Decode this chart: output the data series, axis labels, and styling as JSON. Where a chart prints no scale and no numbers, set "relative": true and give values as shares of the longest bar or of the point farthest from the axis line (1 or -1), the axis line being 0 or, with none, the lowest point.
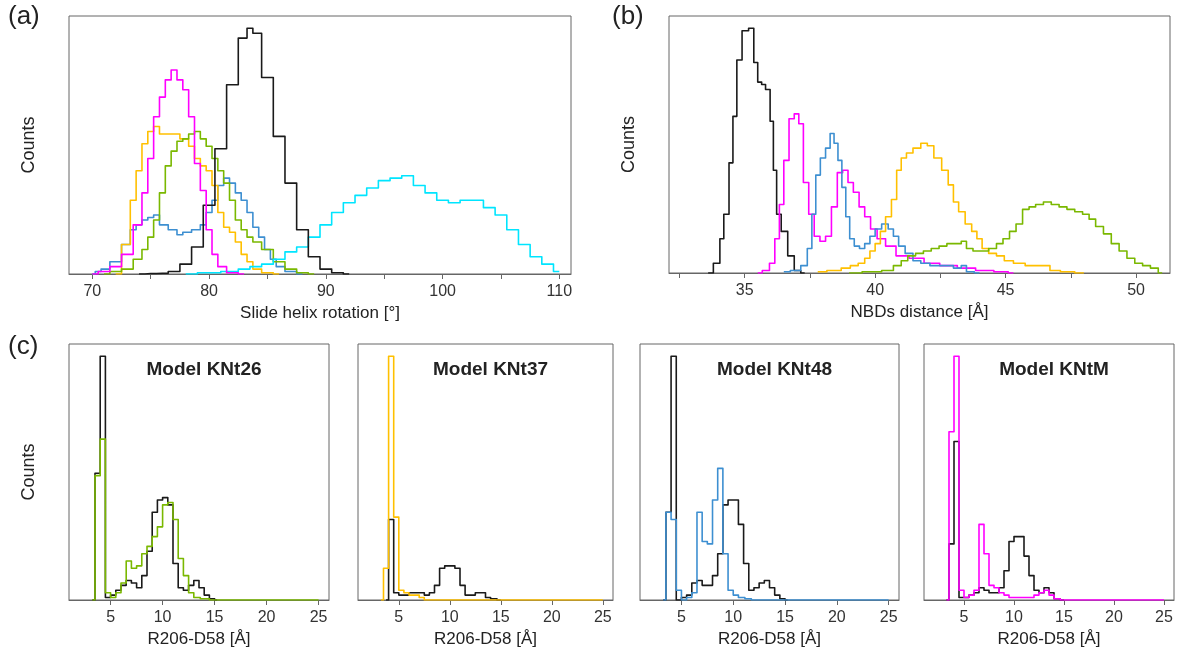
{
  "chart_data": [
    {
      "type": "step",
      "relative": true,
      "annotations": [
        "(a)"
      ],
      "xlabel": "Slide helix rotation [°]",
      "ylabel": "Counts",
      "xlim": [
        68,
        111
      ],
      "xticks": [
        70,
        {
          "value": 75,
          "label": null
        },
        80,
        {
          "value": 85,
          "label": null
        },
        90,
        {
          "value": 95,
          "label": null
        },
        100,
        {
          "value": 105,
          "label": null
        },
        110
      ],
      "series": [
        {
          "color": "#3d8fd1",
          "x": [
            70,
            70.5,
            71,
            72,
            73,
            73.5,
            74,
            74.5,
            75,
            75.5,
            76,
            77,
            77.5,
            78,
            79,
            79.5,
            80,
            80.5,
            81,
            81.5,
            82,
            82.5,
            83,
            83.5,
            84,
            84.5,
            85,
            85.5,
            86,
            87,
            88
          ],
          "values": [
            0,
            0.01,
            0.02,
            0.05,
            0.12,
            0.18,
            0.2,
            0.22,
            0.23,
            0.24,
            0.2,
            0.18,
            0.16,
            0.17,
            0.18,
            0.2,
            0.25,
            0.3,
            0.36,
            0.39,
            0.37,
            0.33,
            0.3,
            0.25,
            0.19,
            0.15,
            0.1,
            0.06,
            0.03,
            0.01,
            0
          ]
        },
        {
          "color": "#ffc000",
          "x": [
            72,
            73,
            73.5,
            74,
            74.5,
            75,
            75.5,
            76,
            76.5,
            77,
            78,
            78.5,
            79,
            79.5,
            80,
            80.5,
            81,
            81.5,
            82,
            82.5,
            83,
            83.5,
            84,
            85,
            86
          ],
          "values": [
            0,
            0.12,
            0.3,
            0.42,
            0.53,
            0.58,
            0.6,
            0.57,
            0.57,
            0.57,
            0.55,
            0.52,
            0.47,
            0.44,
            0.42,
            0.36,
            0.25,
            0.19,
            0.17,
            0.13,
            0.08,
            0.05,
            0.02,
            0.005,
            0
          ]
        },
        {
          "color": "#7ab800",
          "x": [
            71,
            72,
            73,
            74,
            74.5,
            75,
            75.5,
            76,
            76.5,
            77,
            77.5,
            78,
            78.5,
            79,
            79.5,
            80,
            80.5,
            81,
            81.5,
            82,
            82.5,
            83,
            83.5,
            84,
            85,
            86,
            87,
            88,
            89
          ],
          "values": [
            0,
            0.01,
            0.02,
            0.06,
            0.1,
            0.15,
            0.22,
            0.33,
            0.44,
            0.5,
            0.54,
            0.55,
            0.57,
            0.58,
            0.55,
            0.52,
            0.47,
            0.42,
            0.37,
            0.3,
            0.22,
            0.18,
            0.15,
            0.13,
            0.1,
            0.05,
            0.02,
            0.005,
            0
          ]
        },
        {
          "color": "#00e5ff",
          "x": [
            78,
            80,
            82,
            83,
            84,
            85,
            86,
            87,
            88,
            89,
            90,
            91,
            92,
            93,
            94,
            95,
            96,
            97,
            98,
            99,
            100,
            101,
            102,
            103,
            104,
            105,
            106,
            107,
            108,
            109,
            110
          ],
          "values": [
            0,
            0.005,
            0.01,
            0.02,
            0.03,
            0.04,
            0.06,
            0.09,
            0.11,
            0.15,
            0.2,
            0.25,
            0.29,
            0.32,
            0.35,
            0.38,
            0.39,
            0.4,
            0.36,
            0.33,
            0.3,
            0.29,
            0.3,
            0.3,
            0.27,
            0.24,
            0.18,
            0.12,
            0.07,
            0.04,
            0.01
          ]
        },
        {
          "color": "#1a1a1a",
          "x": [
            74,
            75,
            76,
            77,
            78,
            79,
            80,
            81,
            82,
            83,
            83.5,
            84,
            85,
            86,
            87,
            88,
            89,
            90,
            91,
            92
          ],
          "values": [
            0,
            0.002,
            0.003,
            0.01,
            0.04,
            0.11,
            0.28,
            0.51,
            0.77,
            0.96,
            1,
            0.98,
            0.8,
            0.56,
            0.37,
            0.18,
            0.07,
            0.02,
            0.005,
            0
          ]
        },
        {
          "color": "#ff00ff",
          "x": [
            70,
            71,
            72,
            73,
            74,
            74.5,
            75,
            75.5,
            76,
            76.5,
            77,
            77.5,
            78,
            78.5,
            79,
            79.5,
            80,
            80.5,
            81,
            82,
            83
          ],
          "values": [
            0,
            0.01,
            0.03,
            0.08,
            0.2,
            0.33,
            0.47,
            0.64,
            0.72,
            0.79,
            0.83,
            0.79,
            0.75,
            0.64,
            0.45,
            0.34,
            0.18,
            0.08,
            0.03,
            0.005,
            0
          ]
        }
      ]
    },
    {
      "type": "step",
      "relative": true,
      "annotations": [
        "(b)"
      ],
      "xlabel": "NBDs distance [Å]",
      "ylabel": "Counts",
      "xlim": [
        32.1,
        51.3
      ],
      "xticks": [
        {
          "value": 32.5,
          "label": null
        },
        35,
        {
          "value": 37.5,
          "label": null
        },
        40,
        {
          "value": 42.5,
          "label": null
        },
        45,
        {
          "value": 47.5,
          "label": null
        },
        50
      ],
      "series": [
        {
          "color": "#1a1a1a",
          "x": [
            33.6,
            34.0,
            34.1,
            34.3,
            34.5,
            34.6,
            34.8,
            35.0,
            35.3,
            35.4,
            35.6,
            35.7,
            35.9,
            36.05,
            36.15,
            36.3,
            36.5,
            36.8,
            37.0,
            37.3
          ],
          "values": [
            0,
            0.04,
            0.14,
            0.24,
            0.45,
            0.64,
            0.87,
            0.99,
            1.0,
            0.86,
            0.78,
            0.77,
            0.75,
            0.62,
            0.42,
            0.24,
            0.17,
            0.07,
            0.01,
            0
          ]
        },
        {
          "color": "#ff00ff",
          "x": [
            35.5,
            35.85,
            36.05,
            36.26,
            36.4,
            36.6,
            36.8,
            37.0,
            37.15,
            37.35,
            37.56,
            37.77,
            38.0,
            38.2,
            38.45,
            38.65,
            38.86,
            39.06,
            39.27,
            39.5,
            39.7,
            39.95,
            40.2,
            40.6,
            41.0,
            41.6,
            42.15,
            42.8,
            43.5,
            44.2,
            44.9,
            45.3
          ],
          "values": [
            0,
            0.01,
            0.04,
            0.14,
            0.28,
            0.46,
            0.63,
            0.65,
            0.61,
            0.37,
            0.24,
            0.15,
            0.13,
            0.15,
            0.27,
            0.41,
            0.42,
            0.37,
            0.33,
            0.27,
            0.23,
            0.18,
            0.14,
            0.11,
            0.07,
            0.06,
            0.04,
            0.03,
            0.02,
            0.01,
            0.005,
            0
          ]
        },
        {
          "color": "#3d8fd1",
          "x": [
            36.5,
            37.0,
            37.3,
            37.5,
            37.65,
            37.8,
            38.0,
            38.2,
            38.35,
            38.5,
            38.65,
            38.8,
            38.95,
            39.1,
            39.3,
            39.5,
            39.7,
            39.9,
            40.1,
            40.4,
            40.6,
            40.8,
            41.0,
            41.3,
            41.6,
            41.9,
            42.3,
            42.8,
            43.2,
            43.4,
            43.6,
            44.0
          ],
          "values": [
            0.005,
            0.01,
            0.03,
            0.1,
            0.24,
            0.4,
            0.47,
            0.51,
            0.57,
            0.53,
            0.46,
            0.35,
            0.23,
            0.14,
            0.11,
            0.1,
            0.12,
            0.15,
            0.18,
            0.2,
            0.18,
            0.15,
            0.11,
            0.08,
            0.05,
            0.04,
            0.03,
            0.03,
            0.02,
            0.03,
            0.005,
            0
          ]
        },
        {
          "color": "#ffc000",
          "x": [
            37.8,
            38.5,
            38.9,
            39.2,
            39.5,
            39.7,
            39.9,
            40.1,
            40.3,
            40.5,
            40.75,
            40.9,
            41.1,
            41.3,
            41.6,
            41.9,
            42.1,
            42.4,
            42.7,
            42.9,
            43.1,
            43.3,
            43.6,
            43.8,
            44.0,
            44.2,
            44.5,
            44.8,
            45.1,
            45.5,
            46.0,
            46.5,
            46.9,
            47.3,
            48.0
          ],
          "values": [
            0.005,
            0.01,
            0.02,
            0.03,
            0.04,
            0.06,
            0.09,
            0.12,
            0.17,
            0.23,
            0.3,
            0.42,
            0.47,
            0.49,
            0.51,
            0.53,
            0.52,
            0.47,
            0.42,
            0.36,
            0.29,
            0.25,
            0.2,
            0.17,
            0.14,
            0.1,
            0.08,
            0.07,
            0.05,
            0.04,
            0.03,
            0.03,
            0.01,
            0.005,
            0
          ]
        },
        {
          "color": "#7ab800",
          "x": [
            39.0,
            40.0,
            40.5,
            40.9,
            41.1,
            41.4,
            41.7,
            42.0,
            42.3,
            42.6,
            42.9,
            43.2,
            43.4,
            43.6,
            43.9,
            44.2,
            44.5,
            44.8,
            45.0,
            45.3,
            45.5,
            45.8,
            46.0,
            46.3,
            46.6,
            46.9,
            47.2,
            47.5,
            47.8,
            48.1,
            48.3,
            48.6,
            48.9,
            49.2,
            49.5,
            49.8,
            50.1,
            50.4,
            50.7,
            51.0
          ],
          "values": [
            0,
            0.005,
            0.01,
            0.03,
            0.05,
            0.07,
            0.08,
            0.09,
            0.1,
            0.11,
            0.12,
            0.12,
            0.13,
            0.1,
            0.09,
            0.09,
            0.1,
            0.12,
            0.14,
            0.17,
            0.2,
            0.26,
            0.27,
            0.28,
            0.29,
            0.28,
            0.27,
            0.26,
            0.25,
            0.24,
            0.22,
            0.19,
            0.16,
            0.12,
            0.09,
            0.06,
            0.04,
            0.03,
            0.02,
            0
          ]
        }
      ]
    },
    {
      "type": "step",
      "relative": true,
      "annotations": [
        "(c)"
      ],
      "title": "Model KNt26",
      "xlabel": "R206-D58 [Å]",
      "ylabel": "Counts",
      "xlim": [
        1,
        26
      ],
      "xticks": [
        5,
        10,
        15,
        20,
        25
      ],
      "series": [
        {
          "color": "#1a1a1a",
          "x": [
            3.25,
            3.75,
            4.25,
            4.75,
            5.25,
            5.75,
            6.25,
            6.75,
            7.25,
            7.75,
            8.25,
            8.75,
            9.25,
            9.75,
            10.25,
            10.75,
            11.25,
            11.75,
            12.25,
            12.75,
            13.25,
            13.75,
            14.25,
            14.75,
            15.25
          ],
          "values": [
            0,
            0.52,
            1.0,
            0.01,
            0.02,
            0.04,
            0.06,
            0.08,
            0.07,
            0.05,
            0.1,
            0.2,
            0.36,
            0.41,
            0.42,
            0.39,
            0.15,
            0.05,
            0.04,
            0.06,
            0.08,
            0.05,
            0.02,
            0.005,
            0
          ]
        },
        {
          "color": "#7ab800",
          "x": [
            3.25,
            3.75,
            4.25,
            4.75,
            5.25,
            5.75,
            6.25,
            6.75,
            7.25,
            7.75,
            8.25,
            8.75,
            9.25,
            9.75,
            10.25,
            10.75,
            11.25,
            11.75,
            12.25,
            12.75,
            13.25,
            14.0,
            15.0,
            25.0
          ],
          "values": [
            0,
            0.51,
            0.66,
            0.03,
            0.01,
            0.03,
            0.07,
            0.16,
            0.13,
            0.14,
            0.19,
            0.22,
            0.26,
            0.3,
            0.39,
            0.4,
            0.33,
            0.17,
            0.1,
            0.03,
            0.01,
            0.005,
            0,
            0
          ]
        }
      ]
    },
    {
      "type": "step",
      "relative": true,
      "title": "Model KNt37",
      "xlabel": "R206-D58 [Å]",
      "xlim": [
        1,
        26
      ],
      "xticks": [
        5,
        10,
        15,
        20,
        25
      ],
      "series": [
        {
          "color": "#1a1a1a",
          "x": [
            3.75,
            4.25,
            4.75,
            5.25,
            5.75,
            6.25,
            6.75,
            7.25,
            7.75,
            8.25,
            8.75,
            9.25,
            9.75,
            10.25,
            10.75,
            11.25,
            11.75,
            12.25,
            12.75,
            13.25,
            13.75,
            14.25,
            15.0
          ],
          "values": [
            0,
            0.33,
            0.03,
            0.02,
            0.02,
            0.03,
            0.03,
            0.03,
            0.02,
            0.03,
            0.06,
            0.13,
            0.14,
            0.14,
            0.13,
            0.06,
            0.02,
            0.02,
            0.03,
            0.03,
            0.01,
            0.005,
            0
          ]
        },
        {
          "color": "#ffc000",
          "x": [
            3.25,
            3.75,
            4.25,
            4.75,
            5.25,
            5.75,
            6.25,
            6.75,
            7.25,
            7.75,
            25.0
          ],
          "values": [
            0,
            0.13,
            1.0,
            0.34,
            0.04,
            0.03,
            0.02,
            0.02,
            0.01,
            0,
            0
          ]
        }
      ]
    },
    {
      "type": "step",
      "relative": true,
      "title": "Model KNt48",
      "xlabel": "R206-D58 [Å]",
      "xlim": [
        1,
        26
      ],
      "xticks": [
        5,
        10,
        15,
        20,
        25
      ],
      "series": [
        {
          "color": "#1a1a1a",
          "x": [
            3.25,
            3.75,
            4.25,
            4.75,
            5.25,
            5.75,
            6.25,
            6.75,
            7.25,
            7.75,
            8.25,
            8.75,
            9.25,
            9.75,
            10.25,
            10.75,
            11.25,
            11.75,
            12.25,
            12.75,
            13.25,
            13.75,
            14.25,
            14.75,
            15.25
          ],
          "values": [
            0,
            0.36,
            1.0,
            0.0,
            0.01,
            0.02,
            0.07,
            0.08,
            0.06,
            0.06,
            0.1,
            0.19,
            0.39,
            0.41,
            0.41,
            0.31,
            0.15,
            0.04,
            0.05,
            0.07,
            0.08,
            0.05,
            0.02,
            0.005,
            0
          ]
        },
        {
          "color": "#3d8fd1",
          "x": [
            3.25,
            3.75,
            4.25,
            4.75,
            5.25,
            5.75,
            6.25,
            6.75,
            7.25,
            7.75,
            8.25,
            8.75,
            9.25,
            9.75,
            10.25,
            10.75,
            11.5,
            12.0,
            25.0
          ],
          "values": [
            0,
            0.36,
            0.33,
            0.04,
            0,
            0.01,
            0.03,
            0.36,
            0.24,
            0.23,
            0.41,
            0.54,
            0.19,
            0.04,
            0.02,
            0.01,
            0.005,
            0,
            0
          ]
        }
      ]
    },
    {
      "type": "step",
      "relative": true,
      "title": "Model KNtM",
      "xlabel": "R206-D58 [Å]",
      "xlim": [
        1,
        26
      ],
      "xticks": [
        5,
        10,
        15,
        20,
        25
      ],
      "series": [
        {
          "color": "#1a1a1a",
          "x": [
            3.25,
            3.75,
            4.25,
            4.75,
            5.25,
            5.75,
            6.25,
            6.75,
            7.25,
            7.75,
            8.25,
            8.75,
            9.25,
            9.75,
            10.25,
            10.75,
            11.25,
            11.75,
            12.25,
            12.75,
            13.25,
            13.75,
            14.25,
            15.0
          ],
          "values": [
            0,
            0.23,
            0.65,
            0.01,
            0.01,
            0.02,
            0.03,
            0.05,
            0.04,
            0.03,
            0.03,
            0.05,
            0.12,
            0.24,
            0.26,
            0.26,
            0.18,
            0.1,
            0.04,
            0.03,
            0.05,
            0.03,
            0.005,
            0
          ]
        },
        {
          "color": "#ff00ff",
          "x": [
            3.25,
            3.75,
            4.25,
            4.75,
            5.25,
            5.75,
            6.25,
            6.75,
            7.25,
            7.75,
            8.25,
            8.75,
            9.25,
            9.75,
            10.25,
            10.75,
            11.25,
            11.75,
            12.25,
            12.75,
            13.25,
            13.75,
            14.25,
            15.0,
            25.0
          ],
          "values": [
            0,
            0.69,
            1.0,
            0.04,
            0.01,
            0.02,
            0.04,
            0.31,
            0.19,
            0.06,
            0.05,
            0.03,
            0.02,
            0.01,
            0.01,
            0.01,
            0.01,
            0.01,
            0.02,
            0.03,
            0.04,
            0.02,
            0.005,
            0,
            0
          ]
        }
      ]
    }
  ]
}
